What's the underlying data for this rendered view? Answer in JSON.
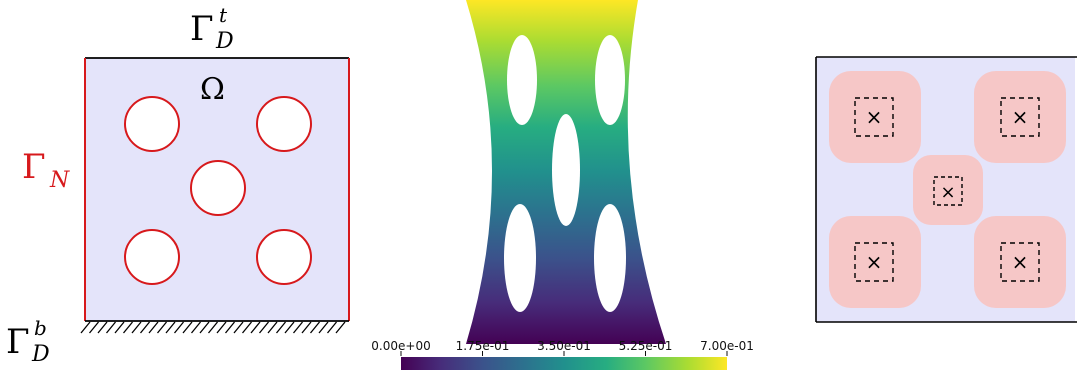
{
  "left_panel": {
    "domain_label": "Ω",
    "top_boundary": {
      "symbol": "Γ",
      "superscript": "t",
      "subscript": "D"
    },
    "neumann_boundary": {
      "symbol": "Γ",
      "subscript": "N"
    },
    "bottom_boundary": {
      "symbol": "Γ",
      "superscript": "b",
      "subscript": "D"
    },
    "hole_count": 5
  },
  "middle_panel": {
    "colorbar": {
      "ticks": [
        "0.00e+00",
        "1.75e-01",
        "3.50e-01",
        "5.25e-01",
        "7.00e-01"
      ],
      "min": 0.0,
      "max": 0.7,
      "colormap": "viridis"
    }
  },
  "right_panel": {
    "marker": "×",
    "subdomain_count": 5
  },
  "colors": {
    "domain_fill": "#e4e4fa",
    "boundary_red": "#d7191c",
    "subdomain_fill": "#f6c7c7"
  }
}
